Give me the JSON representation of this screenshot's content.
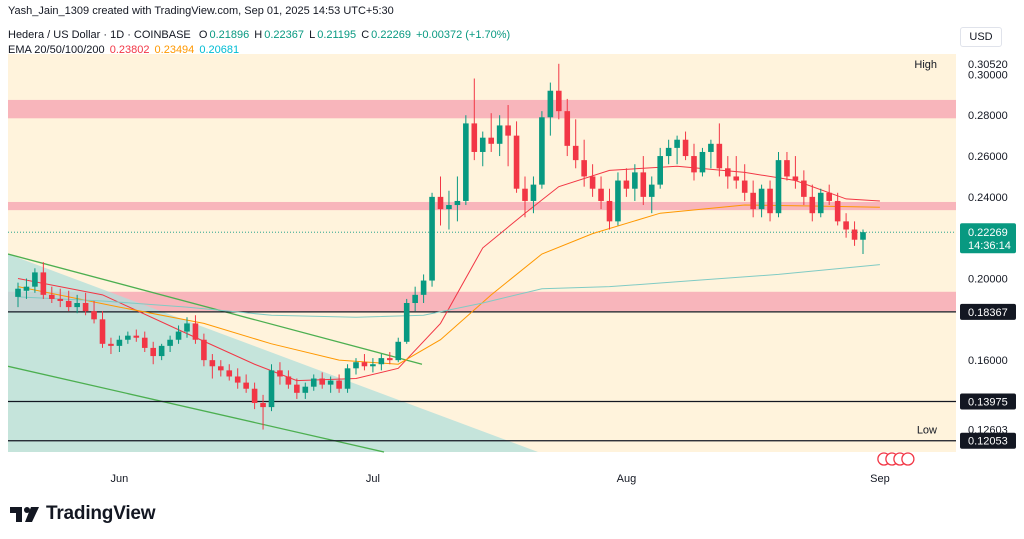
{
  "header": {
    "author_line": "Yash_Jain_1309 created with TradingView.com, Sep 01, 2025 14:53 UTC+5:30"
  },
  "legend": {
    "symbol": "Hedera / US Dollar · 1D · COINBASE",
    "o_label": "O",
    "o": "0.21896",
    "h_label": "H",
    "h": "0.22367",
    "l_label": "L",
    "l": "0.21195",
    "c_label": "C",
    "c": "0.22269",
    "change": "+0.00372 (+1.70%)",
    "ema_label": "EMA 20/50/100/200",
    "ema20": "0.23802",
    "ema50": "0.23494",
    "ema100": "0.20681"
  },
  "currency_button": "USD",
  "brand": "TradingView",
  "colors": {
    "up": "#089981",
    "down": "#f23645",
    "ema20": "#f23645",
    "ema50": "#ff9800",
    "ema100": "#80cbc4",
    "resistance_zone": "#f7a9b5",
    "channel": "#4caf50",
    "background_tint": "#fff3dc"
  },
  "chart_data": {
    "type": "candlestick",
    "yscale": "linear",
    "ylim": [
      0.115,
      0.31
    ],
    "y_ticks": [
      "0.30000",
      "0.28000",
      "0.26000",
      "0.24000",
      "0.20000",
      "0.16000"
    ],
    "x_ticks": [
      "Jun",
      "Jul",
      "Aug",
      "Sep"
    ],
    "price_labels": [
      {
        "label": "High",
        "value": "0.30520"
      },
      {
        "label": "",
        "value": "0.22269",
        "sub": "14:36:14"
      },
      {
        "label": "",
        "value": "0.18367"
      },
      {
        "label": "",
        "value": "0.13975"
      },
      {
        "label": "Low",
        "value": "0.12603"
      },
      {
        "label": "",
        "value": "0.12053"
      }
    ],
    "horizontal_lines": [
      0.18367,
      0.13975,
      0.12053
    ],
    "zones": [
      {
        "from": 0.2785,
        "to": 0.2875,
        "color": "#f7a9b5"
      },
      {
        "from": 0.2335,
        "to": 0.2375,
        "color": "#f7a9b5"
      },
      {
        "from": 0.184,
        "to": 0.1935,
        "color": "#f7a9b5"
      }
    ],
    "channel": {
      "upper": [
        [
          0,
          0.212
        ],
        [
          414,
          0.158
        ]
      ],
      "lower": [
        [
          0,
          0.157
        ],
        [
          376,
          0.115
        ]
      ]
    },
    "candles": [
      {
        "o": 0.191,
        "h": 0.198,
        "l": 0.186,
        "c": 0.195
      },
      {
        "o": 0.194,
        "h": 0.2,
        "l": 0.19,
        "c": 0.196
      },
      {
        "o": 0.196,
        "h": 0.205,
        "l": 0.193,
        "c": 0.203
      },
      {
        "o": 0.203,
        "h": 0.208,
        "l": 0.19,
        "c": 0.192
      },
      {
        "o": 0.192,
        "h": 0.196,
        "l": 0.188,
        "c": 0.19
      },
      {
        "o": 0.19,
        "h": 0.195,
        "l": 0.186,
        "c": 0.189
      },
      {
        "o": 0.189,
        "h": 0.194,
        "l": 0.184,
        "c": 0.186
      },
      {
        "o": 0.186,
        "h": 0.192,
        "l": 0.183,
        "c": 0.188
      },
      {
        "o": 0.188,
        "h": 0.193,
        "l": 0.182,
        "c": 0.184
      },
      {
        "o": 0.184,
        "h": 0.189,
        "l": 0.178,
        "c": 0.18
      },
      {
        "o": 0.18,
        "h": 0.184,
        "l": 0.166,
        "c": 0.168
      },
      {
        "o": 0.168,
        "h": 0.171,
        "l": 0.163,
        "c": 0.167
      },
      {
        "o": 0.167,
        "h": 0.172,
        "l": 0.164,
        "c": 0.17
      },
      {
        "o": 0.17,
        "h": 0.174,
        "l": 0.168,
        "c": 0.172
      },
      {
        "o": 0.172,
        "h": 0.175,
        "l": 0.169,
        "c": 0.171
      },
      {
        "o": 0.171,
        "h": 0.174,
        "l": 0.164,
        "c": 0.166
      },
      {
        "o": 0.166,
        "h": 0.169,
        "l": 0.158,
        "c": 0.162
      },
      {
        "o": 0.162,
        "h": 0.168,
        "l": 0.16,
        "c": 0.167
      },
      {
        "o": 0.167,
        "h": 0.172,
        "l": 0.164,
        "c": 0.17
      },
      {
        "o": 0.17,
        "h": 0.177,
        "l": 0.168,
        "c": 0.174
      },
      {
        "o": 0.174,
        "h": 0.181,
        "l": 0.171,
        "c": 0.178
      },
      {
        "o": 0.178,
        "h": 0.182,
        "l": 0.168,
        "c": 0.17
      },
      {
        "o": 0.17,
        "h": 0.173,
        "l": 0.157,
        "c": 0.16
      },
      {
        "o": 0.16,
        "h": 0.163,
        "l": 0.151,
        "c": 0.157
      },
      {
        "o": 0.157,
        "h": 0.16,
        "l": 0.152,
        "c": 0.155
      },
      {
        "o": 0.155,
        "h": 0.158,
        "l": 0.15,
        "c": 0.152
      },
      {
        "o": 0.152,
        "h": 0.156,
        "l": 0.146,
        "c": 0.149
      },
      {
        "o": 0.149,
        "h": 0.153,
        "l": 0.144,
        "c": 0.146
      },
      {
        "o": 0.146,
        "h": 0.149,
        "l": 0.136,
        "c": 0.139
      },
      {
        "o": 0.139,
        "h": 0.143,
        "l": 0.126,
        "c": 0.137
      },
      {
        "o": 0.137,
        "h": 0.158,
        "l": 0.135,
        "c": 0.155
      },
      {
        "o": 0.155,
        "h": 0.159,
        "l": 0.148,
        "c": 0.152
      },
      {
        "o": 0.152,
        "h": 0.155,
        "l": 0.146,
        "c": 0.148
      },
      {
        "o": 0.148,
        "h": 0.151,
        "l": 0.141,
        "c": 0.144
      },
      {
        "o": 0.144,
        "h": 0.149,
        "l": 0.141,
        "c": 0.147
      },
      {
        "o": 0.147,
        "h": 0.153,
        "l": 0.145,
        "c": 0.151
      },
      {
        "o": 0.151,
        "h": 0.154,
        "l": 0.146,
        "c": 0.148
      },
      {
        "o": 0.148,
        "h": 0.152,
        "l": 0.144,
        "c": 0.15
      },
      {
        "o": 0.15,
        "h": 0.153,
        "l": 0.144,
        "c": 0.146
      },
      {
        "o": 0.146,
        "h": 0.158,
        "l": 0.144,
        "c": 0.156
      },
      {
        "o": 0.156,
        "h": 0.161,
        "l": 0.153,
        "c": 0.159
      },
      {
        "o": 0.159,
        "h": 0.163,
        "l": 0.155,
        "c": 0.157
      },
      {
        "o": 0.157,
        "h": 0.161,
        "l": 0.154,
        "c": 0.158
      },
      {
        "o": 0.158,
        "h": 0.163,
        "l": 0.155,
        "c": 0.161
      },
      {
        "o": 0.161,
        "h": 0.164,
        "l": 0.158,
        "c": 0.16
      },
      {
        "o": 0.16,
        "h": 0.171,
        "l": 0.159,
        "c": 0.169
      },
      {
        "o": 0.169,
        "h": 0.19,
        "l": 0.168,
        "c": 0.188
      },
      {
        "o": 0.188,
        "h": 0.196,
        "l": 0.184,
        "c": 0.192
      },
      {
        "o": 0.192,
        "h": 0.202,
        "l": 0.188,
        "c": 0.199
      },
      {
        "o": 0.199,
        "h": 0.242,
        "l": 0.196,
        "c": 0.24
      },
      {
        "o": 0.24,
        "h": 0.25,
        "l": 0.226,
        "c": 0.234
      },
      {
        "o": 0.234,
        "h": 0.243,
        "l": 0.224,
        "c": 0.236
      },
      {
        "o": 0.236,
        "h": 0.25,
        "l": 0.228,
        "c": 0.238
      },
      {
        "o": 0.238,
        "h": 0.28,
        "l": 0.236,
        "c": 0.276
      },
      {
        "o": 0.276,
        "h": 0.298,
        "l": 0.258,
        "c": 0.262
      },
      {
        "o": 0.262,
        "h": 0.272,
        "l": 0.255,
        "c": 0.269
      },
      {
        "o": 0.269,
        "h": 0.281,
        "l": 0.262,
        "c": 0.266
      },
      {
        "o": 0.266,
        "h": 0.28,
        "l": 0.26,
        "c": 0.275
      },
      {
        "o": 0.275,
        "h": 0.285,
        "l": 0.255,
        "c": 0.27
      },
      {
        "o": 0.27,
        "h": 0.277,
        "l": 0.242,
        "c": 0.244
      },
      {
        "o": 0.244,
        "h": 0.25,
        "l": 0.23,
        "c": 0.238
      },
      {
        "o": 0.238,
        "h": 0.25,
        "l": 0.232,
        "c": 0.246
      },
      {
        "o": 0.246,
        "h": 0.282,
        "l": 0.244,
        "c": 0.279
      },
      {
        "o": 0.279,
        "h": 0.296,
        "l": 0.27,
        "c": 0.292
      },
      {
        "o": 0.292,
        "h": 0.3052,
        "l": 0.278,
        "c": 0.282
      },
      {
        "o": 0.282,
        "h": 0.288,
        "l": 0.26,
        "c": 0.265
      },
      {
        "o": 0.265,
        "h": 0.278,
        "l": 0.254,
        "c": 0.258
      },
      {
        "o": 0.258,
        "h": 0.268,
        "l": 0.245,
        "c": 0.25
      },
      {
        "o": 0.25,
        "h": 0.256,
        "l": 0.24,
        "c": 0.244
      },
      {
        "o": 0.244,
        "h": 0.25,
        "l": 0.234,
        "c": 0.238
      },
      {
        "o": 0.238,
        "h": 0.244,
        "l": 0.224,
        "c": 0.228
      },
      {
        "o": 0.228,
        "h": 0.252,
        "l": 0.226,
        "c": 0.248
      },
      {
        "o": 0.248,
        "h": 0.254,
        "l": 0.24,
        "c": 0.244
      },
      {
        "o": 0.244,
        "h": 0.256,
        "l": 0.238,
        "c": 0.252
      },
      {
        "o": 0.252,
        "h": 0.26,
        "l": 0.236,
        "c": 0.24
      },
      {
        "o": 0.24,
        "h": 0.25,
        "l": 0.232,
        "c": 0.246
      },
      {
        "o": 0.246,
        "h": 0.264,
        "l": 0.244,
        "c": 0.26
      },
      {
        "o": 0.26,
        "h": 0.268,
        "l": 0.256,
        "c": 0.264
      },
      {
        "o": 0.264,
        "h": 0.27,
        "l": 0.256,
        "c": 0.268
      },
      {
        "o": 0.268,
        "h": 0.272,
        "l": 0.258,
        "c": 0.26
      },
      {
        "o": 0.26,
        "h": 0.266,
        "l": 0.248,
        "c": 0.252
      },
      {
        "o": 0.252,
        "h": 0.264,
        "l": 0.25,
        "c": 0.262
      },
      {
        "o": 0.262,
        "h": 0.268,
        "l": 0.254,
        "c": 0.266
      },
      {
        "o": 0.266,
        "h": 0.276,
        "l": 0.25,
        "c": 0.254
      },
      {
        "o": 0.254,
        "h": 0.26,
        "l": 0.244,
        "c": 0.25
      },
      {
        "o": 0.25,
        "h": 0.26,
        "l": 0.244,
        "c": 0.248
      },
      {
        "o": 0.248,
        "h": 0.256,
        "l": 0.238,
        "c": 0.242
      },
      {
        "o": 0.242,
        "h": 0.248,
        "l": 0.23,
        "c": 0.234
      },
      {
        "o": 0.234,
        "h": 0.246,
        "l": 0.23,
        "c": 0.244
      },
      {
        "o": 0.244,
        "h": 0.248,
        "l": 0.228,
        "c": 0.232
      },
      {
        "o": 0.232,
        "h": 0.262,
        "l": 0.23,
        "c": 0.258
      },
      {
        "o": 0.258,
        "h": 0.262,
        "l": 0.248,
        "c": 0.25
      },
      {
        "o": 0.25,
        "h": 0.26,
        "l": 0.244,
        "c": 0.248
      },
      {
        "o": 0.248,
        "h": 0.253,
        "l": 0.236,
        "c": 0.24
      },
      {
        "o": 0.24,
        "h": 0.246,
        "l": 0.228,
        "c": 0.232
      },
      {
        "o": 0.232,
        "h": 0.244,
        "l": 0.23,
        "c": 0.242
      },
      {
        "o": 0.242,
        "h": 0.246,
        "l": 0.236,
        "c": 0.238
      },
      {
        "o": 0.238,
        "h": 0.242,
        "l": 0.226,
        "c": 0.228
      },
      {
        "o": 0.228,
        "h": 0.232,
        "l": 0.22,
        "c": 0.224
      },
      {
        "o": 0.224,
        "h": 0.228,
        "l": 0.216,
        "c": 0.219
      },
      {
        "o": 0.219,
        "h": 0.224,
        "l": 0.212,
        "c": 0.2227
      }
    ],
    "ema": [
      {
        "name": "EMA 20",
        "color": "#f23645",
        "points": [
          [
            0,
            0.2
          ],
          [
            10,
            0.192
          ],
          [
            20,
            0.173
          ],
          [
            28,
            0.158
          ],
          [
            33,
            0.15
          ],
          [
            40,
            0.151
          ],
          [
            45,
            0.156
          ],
          [
            50,
            0.178
          ],
          [
            55,
            0.215
          ],
          [
            60,
            0.232
          ],
          [
            64,
            0.245
          ],
          [
            70,
            0.253
          ],
          [
            78,
            0.255
          ],
          [
            86,
            0.252
          ],
          [
            92,
            0.248
          ],
          [
            98,
            0.239
          ],
          [
            102,
            0.238
          ]
        ]
      },
      {
        "name": "EMA 50",
        "color": "#ff9800",
        "points": [
          [
            0,
            0.196
          ],
          [
            12,
            0.186
          ],
          [
            22,
            0.178
          ],
          [
            30,
            0.168
          ],
          [
            38,
            0.16
          ],
          [
            45,
            0.158
          ],
          [
            50,
            0.17
          ],
          [
            56,
            0.192
          ],
          [
            62,
            0.212
          ],
          [
            68,
            0.222
          ],
          [
            76,
            0.232
          ],
          [
            86,
            0.236
          ],
          [
            94,
            0.2355
          ],
          [
            102,
            0.2349
          ]
        ]
      },
      {
        "name": "EMA 100",
        "color": "#80cbc4",
        "points": [
          [
            0,
            0.191
          ],
          [
            10,
            0.189
          ],
          [
            20,
            0.186
          ],
          [
            30,
            0.182
          ],
          [
            40,
            0.181
          ],
          [
            48,
            0.182
          ],
          [
            55,
            0.188
          ],
          [
            62,
            0.195
          ],
          [
            70,
            0.196
          ],
          [
            80,
            0.199
          ],
          [
            90,
            0.202
          ],
          [
            102,
            0.2068
          ]
        ]
      }
    ]
  }
}
